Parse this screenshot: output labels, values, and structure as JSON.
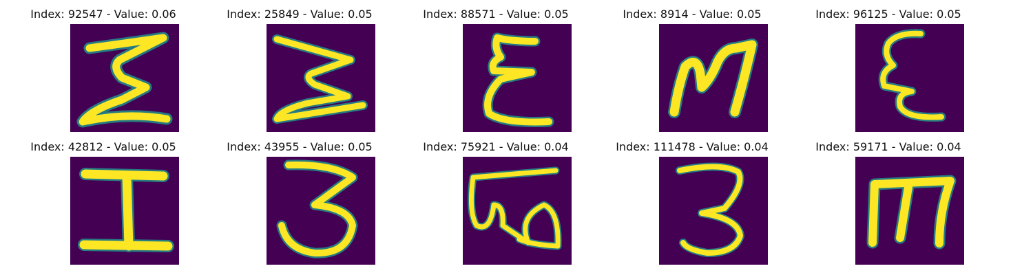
{
  "figure": {
    "colors": {
      "background": "#440154",
      "foreground": "#fde725",
      "edge": "#21918c"
    },
    "panels": [
      {
        "title": "Index: 92547 - Value: 0.06",
        "glyph": "sigma-shape"
      },
      {
        "title": "Index: 25849 - Value: 0.05",
        "glyph": "sideways-m-shape"
      },
      {
        "title": "Index: 88571 - Value: 0.05",
        "glyph": "epsilon-shape"
      },
      {
        "title": "Index: 8914 - Value: 0.05",
        "glyph": "m-shape"
      },
      {
        "title": "Index: 96125 - Value: 0.05",
        "glyph": "epsilon-shape"
      },
      {
        "title": "Index: 42812 - Value: 0.05",
        "glyph": "i-shape"
      },
      {
        "title": "Index: 43955 - Value: 0.05",
        "glyph": "three-shape"
      },
      {
        "title": "Index: 75921 - Value: 0.04",
        "glyph": "omega-shape"
      },
      {
        "title": "Index: 111478 - Value: 0.04",
        "glyph": "three-shape"
      },
      {
        "title": "Index: 59171 - Value: 0.04",
        "glyph": "m-shape"
      }
    ]
  }
}
